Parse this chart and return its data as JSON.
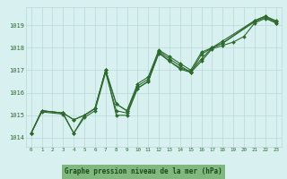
{
  "series": [
    {
      "x": [
        0,
        1,
        3,
        4,
        5,
        6,
        7,
        8,
        9,
        10,
        11,
        12,
        13,
        14,
        15,
        16,
        17,
        18,
        21,
        22,
        23
      ],
      "y": [
        1014.2,
        1015.2,
        1015.1,
        1014.8,
        1015.0,
        1015.3,
        1017.0,
        1015.5,
        1015.2,
        1016.4,
        1016.7,
        1017.9,
        1017.6,
        1017.3,
        1017.0,
        1017.8,
        1018.0,
        1018.3,
        1019.2,
        1019.4,
        1019.2
      ]
    },
    {
      "x": [
        0,
        1,
        3,
        4,
        5,
        6,
        7,
        8,
        9,
        10,
        11,
        12,
        13,
        14,
        15,
        16,
        17,
        18,
        21,
        22,
        23
      ],
      "y": [
        1014.2,
        1015.2,
        1015.1,
        1014.8,
        1015.0,
        1015.3,
        1017.0,
        1015.5,
        1015.2,
        1016.3,
        1016.6,
        1017.85,
        1017.5,
        1017.2,
        1016.9,
        1017.7,
        1018.0,
        1018.2,
        1019.2,
        1019.4,
        1019.15
      ]
    },
    {
      "x": [
        0,
        1,
        3,
        4,
        5,
        6,
        7,
        8,
        9,
        10,
        11,
        12,
        13,
        14,
        15,
        16,
        17,
        18,
        21,
        22,
        23
      ],
      "y": [
        1014.2,
        1015.2,
        1015.1,
        1014.2,
        1015.0,
        1015.3,
        1017.0,
        1015.0,
        1015.0,
        1016.2,
        1016.5,
        1017.8,
        1017.4,
        1017.1,
        1016.95,
        1017.5,
        1018.0,
        1018.2,
        1019.15,
        1019.35,
        1019.1
      ]
    },
    {
      "x": [
        0,
        1,
        3,
        4,
        5,
        6,
        7,
        8,
        9,
        10,
        11,
        12,
        13,
        14,
        15,
        16,
        17,
        18,
        19,
        20,
        21,
        22,
        23
      ],
      "y": [
        1014.2,
        1015.15,
        1015.05,
        1014.2,
        1014.9,
        1015.2,
        1016.9,
        1015.2,
        1015.1,
        1016.2,
        1016.5,
        1017.75,
        1017.4,
        1017.05,
        1016.9,
        1017.4,
        1017.95,
        1018.1,
        1018.25,
        1018.5,
        1019.1,
        1019.3,
        1019.1
      ]
    }
  ],
  "line_color": "#2d6a2d",
  "marker_color": "#2d6a2d",
  "bg_color": "#d8f0f0",
  "grid_color": "#b8d8d8",
  "xlabel": "Graphe pression niveau de la mer (hPa)",
  "xlabel_color": "#1a4a1a",
  "xlabel_bg": "#80b880",
  "ylabel_ticks": [
    1014,
    1015,
    1016,
    1017,
    1018,
    1019
  ],
  "xlim": [
    -0.5,
    23.5
  ],
  "ylim": [
    1013.6,
    1019.8
  ],
  "xticks": [
    0,
    1,
    2,
    3,
    4,
    5,
    6,
    7,
    8,
    9,
    10,
    11,
    12,
    13,
    14,
    15,
    16,
    17,
    18,
    19,
    20,
    21,
    22,
    23
  ],
  "figwidth": 3.2,
  "figheight": 2.0,
  "dpi": 100
}
